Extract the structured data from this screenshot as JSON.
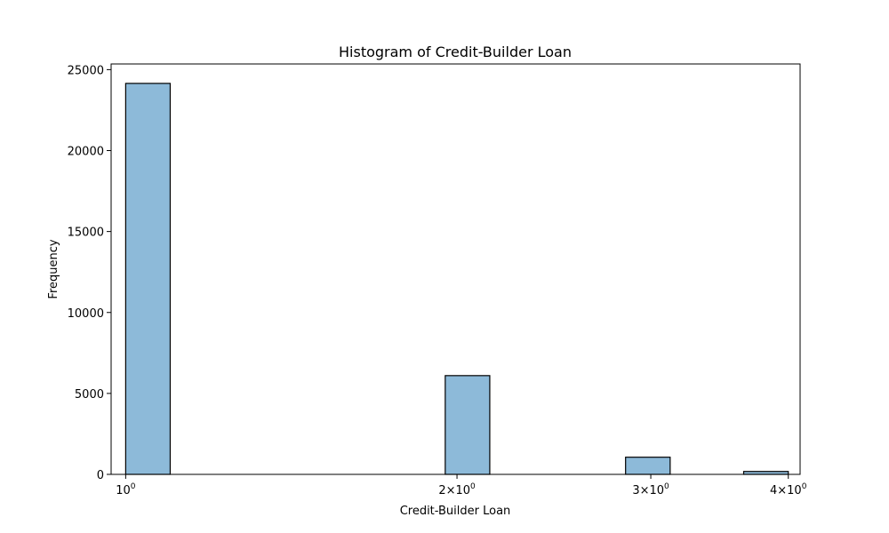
{
  "chart_data": {
    "type": "bar",
    "title": "Histogram of Credit-Builder Loan",
    "xlabel": "Credit-Builder Loan",
    "ylabel": "Frequency",
    "x_scale": "log",
    "xlim": [
      0.97,
      4.1
    ],
    "ylim": [
      0,
      25350
    ],
    "x_ticks": [
      {
        "value": 1,
        "mantissa": "",
        "exponent": "0"
      },
      {
        "value": 2,
        "mantissa": "2",
        "exponent": "0"
      },
      {
        "value": 3,
        "mantissa": "3",
        "exponent": "0"
      },
      {
        "value": 4,
        "mantissa": "4",
        "exponent": "0"
      }
    ],
    "y_ticks": [
      0,
      5000,
      10000,
      15000,
      20000,
      25000
    ],
    "bins": [
      {
        "x_start": 1.0,
        "x_end": 1.0976,
        "value": 24150
      },
      {
        "x_start": 1.9514,
        "x_end": 2.142,
        "value": 6100
      },
      {
        "x_start": 2.8458,
        "x_end": 3.124,
        "value": 1060
      },
      {
        "x_start": 3.6434,
        "x_end": 4.0,
        "value": 180
      }
    ],
    "grid": false,
    "colors": {
      "bar_fill": "#8dbad9",
      "bar_edge": "#000000",
      "axis": "#000000"
    }
  }
}
